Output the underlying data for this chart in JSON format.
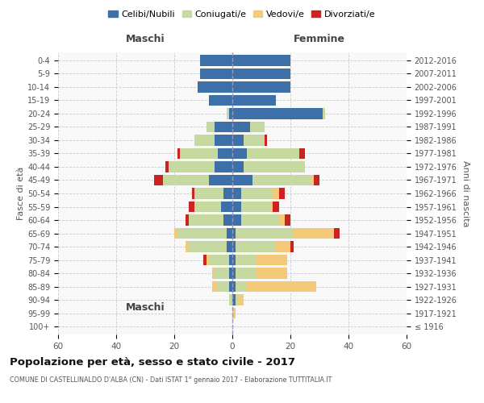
{
  "age_groups": [
    "100+",
    "95-99",
    "90-94",
    "85-89",
    "80-84",
    "75-79",
    "70-74",
    "65-69",
    "60-64",
    "55-59",
    "50-54",
    "45-49",
    "40-44",
    "35-39",
    "30-34",
    "25-29",
    "20-24",
    "15-19",
    "10-14",
    "5-9",
    "0-4"
  ],
  "birth_years": [
    "≤ 1916",
    "1917-1921",
    "1922-1926",
    "1927-1931",
    "1932-1936",
    "1937-1941",
    "1942-1946",
    "1947-1951",
    "1952-1956",
    "1957-1961",
    "1962-1966",
    "1967-1971",
    "1972-1976",
    "1977-1981",
    "1982-1986",
    "1987-1991",
    "1992-1996",
    "1997-2001",
    "2002-2006",
    "2007-2011",
    "2012-2016"
  ],
  "colors": {
    "celibi": "#3d6fa8",
    "coniugati": "#c5d9a0",
    "vedovi": "#f5c97a",
    "divorziati": "#cc2222"
  },
  "maschi": {
    "celibi": [
      0,
      0,
      0,
      1,
      1,
      1,
      2,
      2,
      3,
      4,
      3,
      8,
      6,
      5,
      6,
      6,
      1,
      8,
      12,
      11,
      11
    ],
    "coniugati": [
      0,
      0,
      1,
      4,
      5,
      7,
      13,
      17,
      12,
      9,
      10,
      16,
      16,
      13,
      7,
      3,
      1,
      0,
      0,
      0,
      0
    ],
    "vedovi": [
      0,
      0,
      0,
      2,
      1,
      1,
      1,
      1,
      0,
      0,
      0,
      0,
      0,
      0,
      0,
      0,
      0,
      0,
      0,
      0,
      0
    ],
    "divorziati": [
      0,
      0,
      0,
      0,
      0,
      1,
      0,
      0,
      1,
      2,
      1,
      3,
      1,
      1,
      0,
      0,
      0,
      0,
      0,
      0,
      0
    ]
  },
  "femmine": {
    "celibi": [
      0,
      0,
      1,
      1,
      1,
      1,
      1,
      1,
      3,
      3,
      3,
      7,
      4,
      5,
      4,
      6,
      31,
      15,
      20,
      20,
      20
    ],
    "coniugati": [
      0,
      0,
      1,
      4,
      7,
      7,
      14,
      20,
      13,
      10,
      11,
      20,
      21,
      18,
      7,
      5,
      1,
      0,
      0,
      0,
      0
    ],
    "vedovi": [
      0,
      1,
      2,
      24,
      11,
      11,
      5,
      14,
      2,
      1,
      2,
      1,
      0,
      0,
      0,
      0,
      0,
      0,
      0,
      0,
      0
    ],
    "divorziati": [
      0,
      0,
      0,
      0,
      0,
      0,
      1,
      2,
      2,
      2,
      2,
      2,
      0,
      2,
      1,
      0,
      0,
      0,
      0,
      0,
      0
    ]
  },
  "title": "Popolazione per età, sesso e stato civile - 2017",
  "subtitle": "COMUNE DI CASTELLINALDO D'ALBA (CN) - Dati ISTAT 1° gennaio 2017 - Elaborazione TUTTITALIA.IT",
  "xlabel_left": "Maschi",
  "xlabel_right": "Femmine",
  "ylabel_left": "Fasce di età",
  "ylabel_right": "Anni di nascita",
  "xlim": 60,
  "legend_labels": [
    "Celibi/Nubili",
    "Coniugati/e",
    "Vedovi/e",
    "Divorziati/e"
  ],
  "bg_color": "#f8f8f8",
  "grid_color": "#cccccc",
  "bar_height": 0.8
}
